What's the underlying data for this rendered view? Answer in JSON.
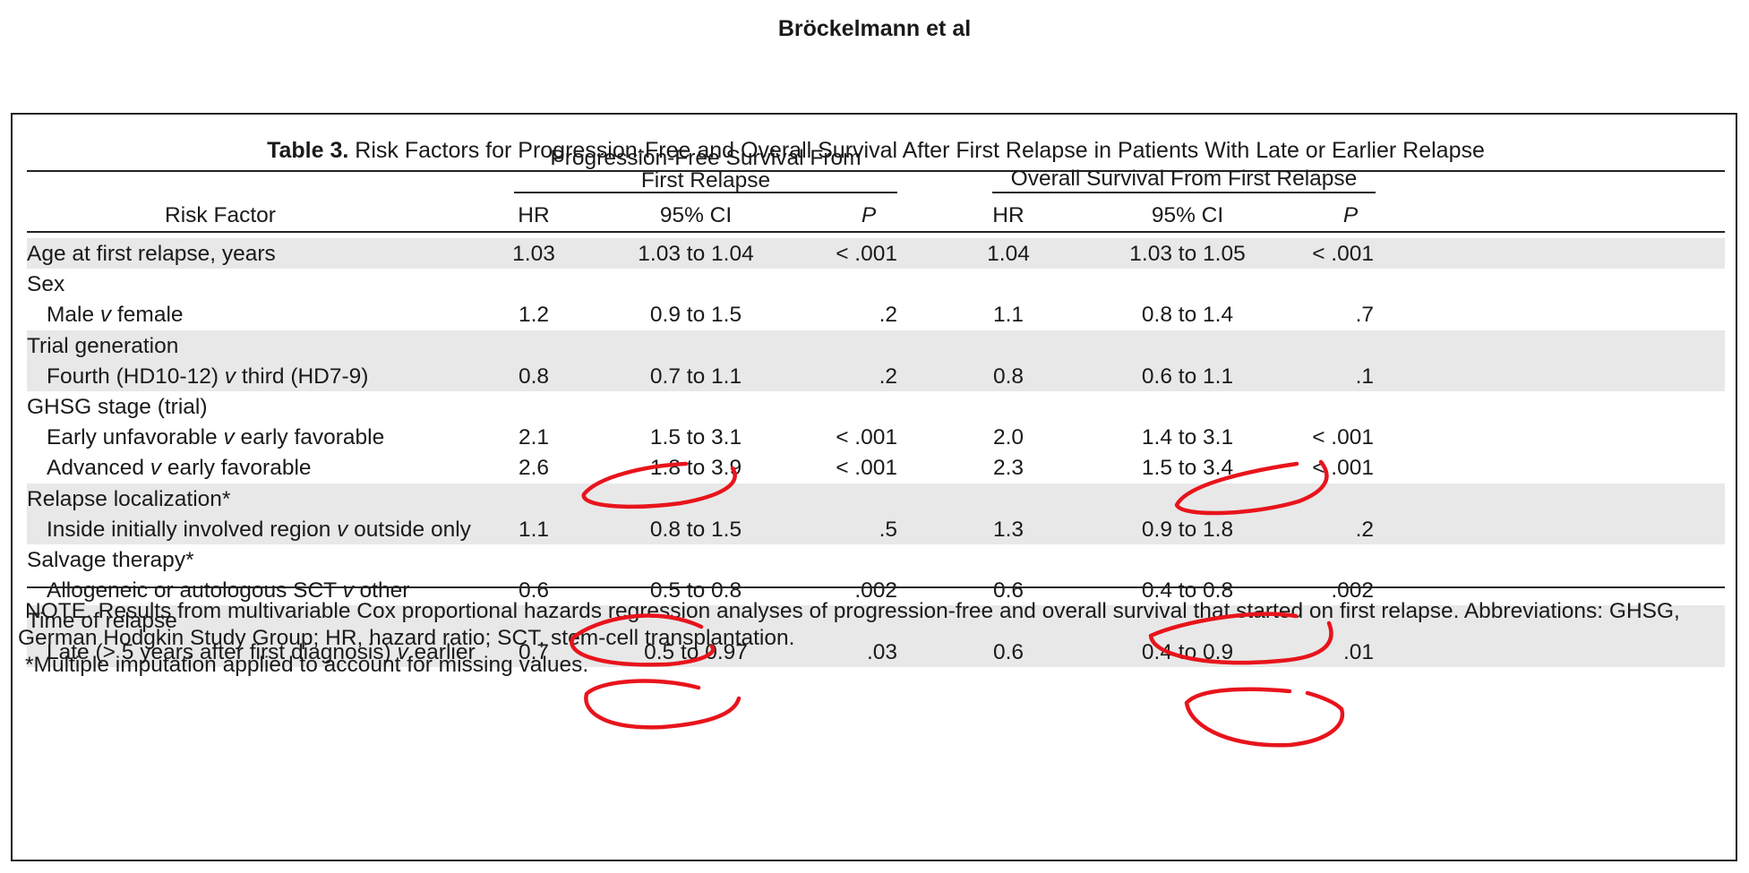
{
  "running_head": "Bröckelmann et al",
  "caption": {
    "label": "Table 3.",
    "text": "Risk Factors for Progression-Free and Overall Survival After First Relapse in Patients With Late or Earlier Relapse"
  },
  "groups": {
    "pfs_line1": "Progression-Free Survival From",
    "pfs_line2": "First Relapse",
    "os": "Overall Survival From First Relapse"
  },
  "columns": {
    "risk_factor": "Risk Factor",
    "hr1": "HR",
    "ci1": "95% CI",
    "p1": "P",
    "hr2": "HR",
    "ci2": "95% CI",
    "p2": "P"
  },
  "rows": [
    {
      "label": "Age at first relapse, years",
      "indent": false,
      "band": 0,
      "hr1": "1.03",
      "ci1": "1.03 to 1.04",
      "p1": "< .001",
      "hr2": "1.04",
      "ci2": "1.03 to 1.05",
      "p2": "< .001"
    },
    {
      "label": "Sex",
      "indent": false,
      "band": 1,
      "hr1": "",
      "ci1": "",
      "p1": "",
      "hr2": "",
      "ci2": "",
      "p2": ""
    },
    {
      "label": "Male v female",
      "indent": true,
      "band": 1,
      "hr1": "1.2",
      "ci1": "0.9 to 1.5",
      "p1": ".2",
      "hr2": "1.1",
      "ci2": "0.8 to 1.4",
      "p2": ".7"
    },
    {
      "label": "Trial generation",
      "indent": false,
      "band": 2,
      "hr1": "",
      "ci1": "",
      "p1": "",
      "hr2": "",
      "ci2": "",
      "p2": ""
    },
    {
      "label": "Fourth (HD10-12) v third (HD7-9)",
      "indent": true,
      "band": 2,
      "hr1": "0.8",
      "ci1": "0.7 to 1.1",
      "p1": ".2",
      "hr2": "0.8",
      "ci2": "0.6 to 1.1",
      "p2": ".1"
    },
    {
      "label": "GHSG stage (trial)",
      "indent": false,
      "band": 3,
      "hr1": "",
      "ci1": "",
      "p1": "",
      "hr2": "",
      "ci2": "",
      "p2": ""
    },
    {
      "label": "Early unfavorable v early favorable",
      "indent": true,
      "band": 3,
      "hr1": "2.1",
      "ci1": "1.5 to 3.1",
      "p1": "< .001",
      "hr2": "2.0",
      "ci2": "1.4 to 3.1",
      "p2": "< .001"
    },
    {
      "label": "Advanced v early favorable",
      "indent": true,
      "band": 3,
      "hr1": "2.6",
      "ci1": "1.8 to 3.9",
      "p1": "< .001",
      "hr2": "2.3",
      "ci2": "1.5 to 3.4",
      "p2": "< .001"
    },
    {
      "label": "Relapse localization*",
      "indent": false,
      "band": 4,
      "hr1": "",
      "ci1": "",
      "p1": "",
      "hr2": "",
      "ci2": "",
      "p2": ""
    },
    {
      "label": "Inside initially involved region v outside only",
      "indent": true,
      "band": 4,
      "hr1": "1.1",
      "ci1": "0.8 to 1.5",
      "p1": ".5",
      "hr2": "1.3",
      "ci2": "0.9 to 1.8",
      "p2": ".2"
    },
    {
      "label": "Salvage therapy*",
      "indent": false,
      "band": 5,
      "hr1": "",
      "ci1": "",
      "p1": "",
      "hr2": "",
      "ci2": "",
      "p2": ""
    },
    {
      "label": "Allogeneic or autologous SCT v other",
      "indent": true,
      "band": 5,
      "hr1": "0.6",
      "ci1": "0.5 to 0.8",
      "p1": ".002",
      "hr2": "0.6",
      "ci2": "0.4 to 0.8",
      "p2": ".002"
    },
    {
      "label": "Time of relapse",
      "indent": false,
      "band": 6,
      "hr1": "",
      "ci1": "",
      "p1": "",
      "hr2": "",
      "ci2": "",
      "p2": ""
    },
    {
      "label": "Late (> 5 years after first diagnosis) v earlier",
      "indent": true,
      "band": 6,
      "hr1": "0.7",
      "ci1": "0.5 to 0.97",
      "p1": ".03",
      "hr2": "0.6",
      "ci2": "0.4 to 0.9",
      "p2": ".01"
    }
  ],
  "note": {
    "line1": "NOTE. Results from multivariable Cox proportional hazards regression analyses of progression-free and overall survival that started on first relapse. Abbreviations: GHSG, German Hodgkin Study Group; HR, hazard ratio; SCT, stem-cell transplantation.",
    "line2": "*Multiple imputation applied to account for missing values."
  },
  "colors": {
    "band": "#e8e8e8",
    "annotation": "#e8141c"
  }
}
